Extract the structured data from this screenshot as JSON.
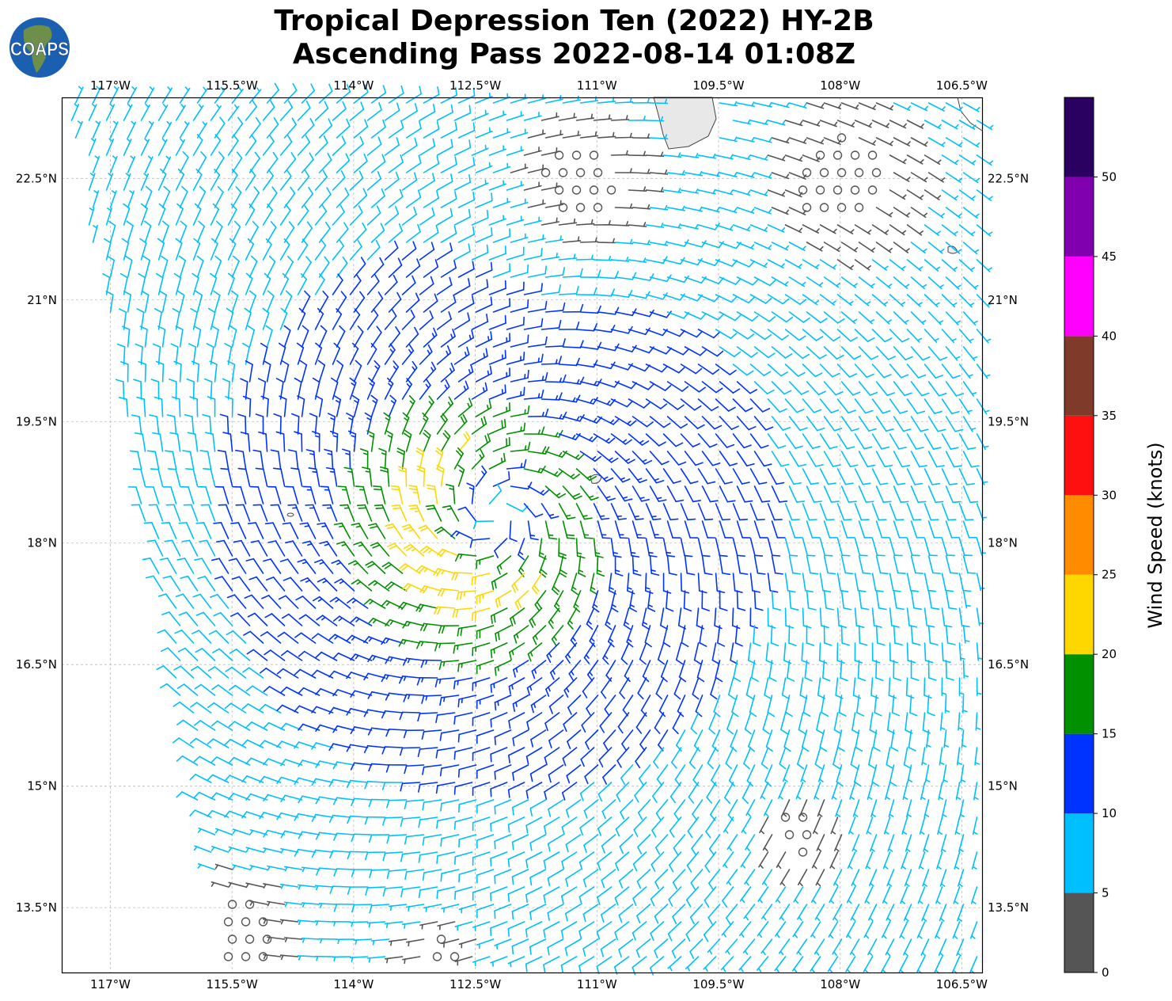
{
  "title": {
    "line1": "Tropical Depression Ten (2022) HY-2B",
    "line2": "Ascending Pass 2022-08-14 01:08Z"
  },
  "logo": {
    "text": "COAPS"
  },
  "map": {
    "type": "wind-barbs",
    "extent": {
      "lon_min": -117.6,
      "lon_max": -106.25,
      "lat_min": 12.7,
      "lat_max": 23.5
    },
    "lon_ticks": [
      "117°W",
      "115.5°W",
      "114°W",
      "112.5°W",
      "111°W",
      "109.5°W",
      "108°W",
      "106.5°W"
    ],
    "lat_ticks": [
      "22.5°N",
      "21°N",
      "19.5°N",
      "18°N",
      "16.5°N",
      "15°N",
      "13.5°N"
    ],
    "grid": true,
    "storm_center": {
      "lon": -112.25,
      "lat": 18.35
    }
  },
  "colorbar": {
    "label": "Wind Speed (knots)",
    "ticks": [
      "0",
      "5",
      "10",
      "15",
      "20",
      "25",
      "30",
      "35",
      "40",
      "45",
      "50"
    ],
    "bins": [
      0,
      5,
      10,
      15,
      20,
      25,
      30,
      35,
      40,
      45,
      50,
      55
    ],
    "colors": [
      "#555555",
      "#00BFFF",
      "#0033FF",
      "#009000",
      "#FFD700",
      "#FF8C00",
      "#FF1010",
      "#803A2A",
      "#FF00FF",
      "#8000B0",
      "#2A0060"
    ]
  }
}
